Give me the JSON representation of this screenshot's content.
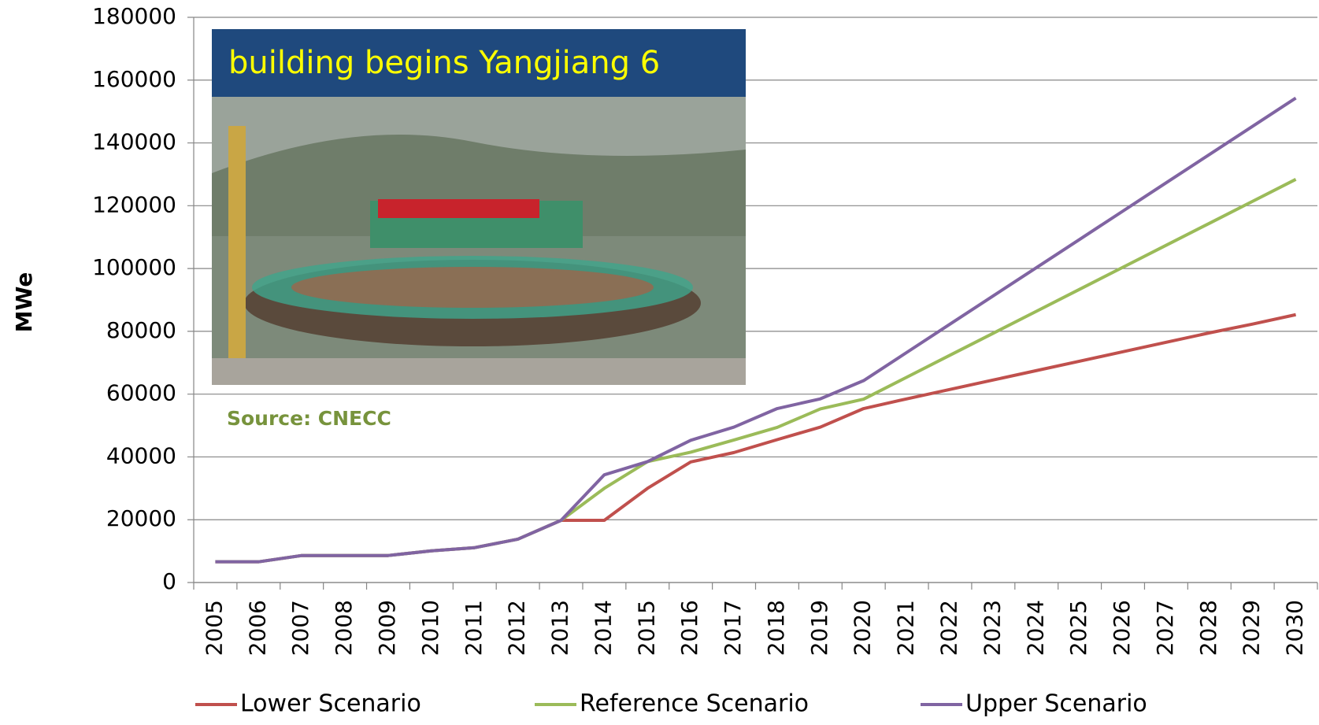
{
  "chart_data": {
    "type": "line",
    "photo_caption": "building begins Yangjiang 6",
    "source": "Source: CNECC",
    "y_label": "MWe",
    "categories": [
      "2005",
      "2006",
      "2007",
      "2008",
      "2009",
      "2010",
      "2011",
      "2012",
      "2013",
      "2014",
      "2015",
      "2016",
      "2017",
      "2018",
      "2019",
      "2020",
      "2021",
      "2022",
      "2023",
      "2024",
      "2025",
      "2026",
      "2027",
      "2028",
      "2029",
      "2030"
    ],
    "series": [
      {
        "name": "Lower Scenario",
        "color": "#c0504d",
        "values": [
          6600,
          6600,
          8600,
          8600,
          8600,
          10100,
          11100,
          13800,
          19800,
          19800,
          30000,
          38400,
          41400,
          45500,
          49500,
          55400,
          58500,
          61500,
          64500,
          67500,
          70500,
          73500,
          76500,
          79500,
          82300,
          85300
        ]
      },
      {
        "name": "Reference Scenario",
        "color": "#9bbb59",
        "values": [
          6600,
          6600,
          8600,
          8600,
          8600,
          10100,
          11100,
          13800,
          19800,
          30000,
          38500,
          41500,
          45400,
          49400,
          55300,
          58400,
          65400,
          72400,
          79400,
          86400,
          93400,
          100400,
          107400,
          114400,
          121400,
          128400
        ]
      },
      {
        "name": "Upper Scenario",
        "color": "#8064a2",
        "values": [
          6600,
          6600,
          8600,
          8600,
          8600,
          10100,
          11100,
          13800,
          19800,
          34300,
          38500,
          45300,
          49500,
          55400,
          58500,
          64300,
          73300,
          82300,
          91300,
          100300,
          109300,
          118300,
          127300,
          136300,
          145300,
          154300
        ]
      }
    ],
    "ylim": [
      0,
      180000
    ],
    "yticks": [
      0,
      20000,
      40000,
      60000,
      80000,
      100000,
      120000,
      140000,
      160000,
      180000
    ],
    "grid": true,
    "legend": "bottom"
  }
}
